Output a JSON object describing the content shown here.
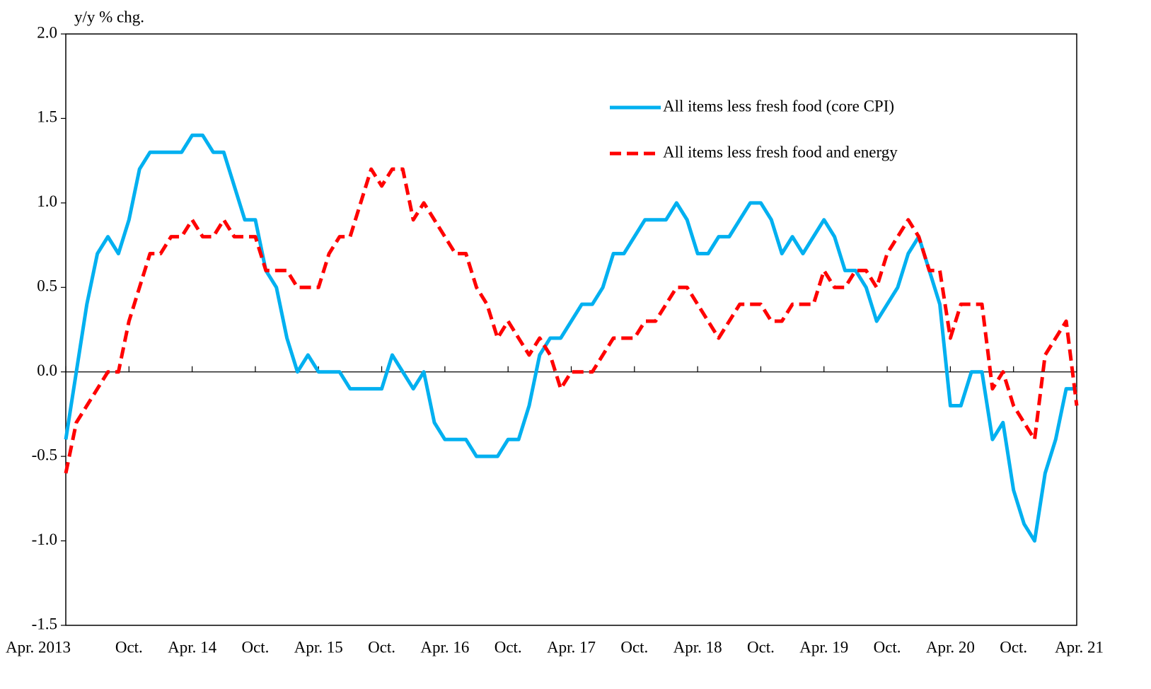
{
  "chart_data": {
    "type": "line",
    "y_axis_label": "y/y % chg.",
    "categories": [
      "Apr. 2013",
      null,
      null,
      null,
      null,
      null,
      "Oct.",
      null,
      null,
      null,
      null,
      null,
      "Apr. 14",
      null,
      null,
      null,
      null,
      null,
      "Oct.",
      null,
      null,
      null,
      null,
      null,
      "Apr. 15",
      null,
      null,
      null,
      null,
      null,
      "Oct.",
      null,
      null,
      null,
      null,
      null,
      "Apr. 16",
      null,
      null,
      null,
      null,
      null,
      "Oct.",
      null,
      null,
      null,
      null,
      null,
      "Apr. 17",
      null,
      null,
      null,
      null,
      null,
      "Oct.",
      null,
      null,
      null,
      null,
      null,
      "Apr. 18",
      null,
      null,
      null,
      null,
      null,
      "Oct.",
      null,
      null,
      null,
      null,
      null,
      "Apr. 19",
      null,
      null,
      null,
      null,
      null,
      "Oct.",
      null,
      null,
      null,
      null,
      null,
      "Apr. 20",
      null,
      null,
      null,
      null,
      null,
      "Oct.",
      null,
      null,
      null,
      null,
      null,
      "Apr. 21"
    ],
    "series": [
      {
        "name": "All items less fresh food (core CPI)",
        "color": "#00b0f0",
        "dash": false,
        "values": [
          -0.4,
          0.0,
          0.4,
          0.7,
          0.8,
          0.7,
          0.9,
          1.2,
          1.3,
          1.3,
          1.3,
          1.3,
          1.4,
          1.4,
          1.3,
          1.3,
          1.1,
          0.9,
          0.9,
          0.6,
          0.5,
          0.2,
          0.0,
          0.1,
          0.0,
          0.0,
          0.0,
          -0.1,
          -0.1,
          -0.1,
          -0.1,
          0.1,
          0.0,
          -0.1,
          0.0,
          -0.3,
          -0.4,
          -0.4,
          -0.4,
          -0.5,
          -0.5,
          -0.5,
          -0.4,
          -0.4,
          -0.2,
          0.1,
          0.2,
          0.2,
          0.3,
          0.4,
          0.4,
          0.5,
          0.7,
          0.7,
          0.8,
          0.9,
          0.9,
          0.9,
          1.0,
          0.9,
          0.7,
          0.7,
          0.8,
          0.8,
          0.9,
          1.0,
          1.0,
          0.9,
          0.7,
          0.8,
          0.7,
          0.8,
          0.9,
          0.8,
          0.6,
          0.6,
          0.5,
          0.3,
          0.4,
          0.5,
          0.7,
          0.8,
          0.6,
          0.4,
          -0.2,
          -0.2,
          0.0,
          0.0,
          -0.4,
          -0.3,
          -0.7,
          -0.9,
          -1.0,
          -0.6,
          -0.4,
          -0.1,
          -0.1
        ]
      },
      {
        "name": "All items less fresh food and energy",
        "color": "#ff0000",
        "dash": true,
        "values": [
          -0.6,
          -0.3,
          -0.2,
          -0.1,
          0.0,
          0.0,
          0.3,
          0.5,
          0.7,
          0.7,
          0.8,
          0.8,
          0.9,
          0.8,
          0.8,
          0.9,
          0.8,
          0.8,
          0.8,
          0.6,
          0.6,
          0.6,
          0.5,
          0.5,
          0.5,
          0.7,
          0.8,
          0.8,
          1.0,
          1.2,
          1.1,
          1.2,
          1.2,
          0.9,
          1.0,
          0.9,
          0.8,
          0.7,
          0.7,
          0.5,
          0.4,
          0.2,
          0.3,
          0.2,
          0.1,
          0.2,
          0.1,
          -0.1,
          0.0,
          0.0,
          0.0,
          0.1,
          0.2,
          0.2,
          0.2,
          0.3,
          0.3,
          0.4,
          0.5,
          0.5,
          0.4,
          0.3,
          0.2,
          0.3,
          0.4,
          0.4,
          0.4,
          0.3,
          0.3,
          0.4,
          0.4,
          0.4,
          0.6,
          0.5,
          0.5,
          0.6,
          0.6,
          0.5,
          0.7,
          0.8,
          0.9,
          0.8,
          0.6,
          0.6,
          0.2,
          0.4,
          0.4,
          0.4,
          -0.1,
          0.0,
          -0.2,
          -0.3,
          -0.4,
          0.1,
          0.2,
          0.3,
          -0.2
        ]
      }
    ],
    "ylim": [
      -1.5,
      2.0
    ],
    "yticks": [
      {
        "value": -1.5,
        "label": "-1.5"
      },
      {
        "value": -1.0,
        "label": "-1.0"
      },
      {
        "value": -0.5,
        "label": "-0.5"
      },
      {
        "value": 0.0,
        "label": "0.0"
      },
      {
        "value": 0.5,
        "label": "0.5"
      },
      {
        "value": 1.0,
        "label": "1.0"
      },
      {
        "value": 1.5,
        "label": "1.5"
      },
      {
        "value": 2.0,
        "label": "2.0"
      }
    ],
    "grid": false,
    "legend": "top-right"
  }
}
